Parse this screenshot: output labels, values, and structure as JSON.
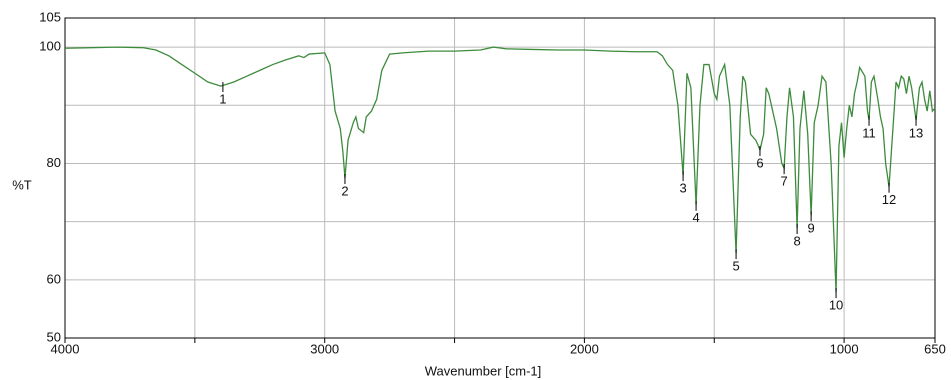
{
  "chart_data": {
    "type": "line",
    "x_label": "Wavenumber [cm-1]",
    "y_label": "%T",
    "xlim": [
      4000,
      650
    ],
    "ylim": [
      50,
      105
    ],
    "xticks": [
      4000,
      {
        "value": 3500,
        "label": null
      },
      3000,
      {
        "value": 2500,
        "label": null
      },
      2000,
      {
        "value": 1500,
        "label": null
      },
      1000,
      650
    ],
    "yticks": [
      50,
      60,
      {
        "value": 70,
        "label": null
      },
      80,
      {
        "value": 90,
        "label": null
      },
      100,
      105
    ],
    "grid": true,
    "series": [
      {
        "color": "#3d8b3d",
        "x": [
          4000,
          3900,
          3800,
          3700,
          3650,
          3600,
          3550,
          3500,
          3450,
          3400,
          3350,
          3300,
          3250,
          3200,
          3150,
          3100,
          3080,
          3060,
          3000,
          2980,
          2960,
          2940,
          2930,
          2922,
          2910,
          2890,
          2880,
          2870,
          2850,
          2840,
          2820,
          2800,
          2780,
          2750,
          2700,
          2600,
          2500,
          2400,
          2350,
          2300,
          2200,
          2100,
          2000,
          1900,
          1800,
          1720,
          1700,
          1680,
          1660,
          1640,
          1620,
          1605,
          1590,
          1570,
          1555,
          1540,
          1520,
          1500,
          1490,
          1480,
          1460,
          1440,
          1416,
          1400,
          1390,
          1380,
          1360,
          1340,
          1330,
          1324,
          1310,
          1300,
          1290,
          1260,
          1240,
          1231,
          1220,
          1210,
          1195,
          1181,
          1170,
          1155,
          1140,
          1127,
          1115,
          1100,
          1085,
          1070,
          1050,
          1031,
          1020,
          1010,
          1000,
          990,
          980,
          970,
          960,
          950,
          940,
          920,
          910,
          904,
          895,
          885,
          870,
          860,
          850,
          840,
          827,
          815,
          800,
          790,
          780,
          770,
          760,
          750,
          740,
          723,
          710,
          700,
          690,
          680,
          670,
          660,
          650
        ],
        "values": [
          99.8,
          99.9,
          100,
          99.9,
          99.5,
          98.5,
          97,
          95.5,
          94,
          93.3,
          94,
          95,
          96,
          97,
          97.8,
          98.5,
          98.2,
          98.8,
          99,
          97,
          89,
          86,
          82,
          77.5,
          84,
          87,
          88,
          86,
          85.3,
          88,
          89,
          91,
          96,
          98.8,
          99,
          99.3,
          99.3,
          99.5,
          100,
          99.7,
          99.6,
          99.5,
          99.5,
          99.3,
          99.2,
          99.2,
          98.5,
          97,
          96,
          90,
          78,
          95.5,
          93,
          72.9,
          90,
          97,
          97,
          92,
          91,
          95,
          97,
          90,
          64.6,
          88,
          95,
          94,
          85,
          84,
          83,
          82.3,
          85,
          93,
          92,
          86,
          80,
          79.2,
          88,
          93,
          88,
          68.9,
          86,
          92.5,
          85,
          71.1,
          87,
          90,
          95,
          94,
          80,
          57.9,
          83,
          87,
          81,
          86,
          90,
          88,
          92,
          94,
          96.5,
          95,
          89,
          87.5,
          94,
          95,
          91,
          88,
          86,
          80,
          76,
          84,
          94,
          93,
          95,
          94.5,
          92,
          95,
          93,
          87.5,
          93,
          94,
          91,
          89,
          92.5,
          89,
          89.5
        ]
      }
    ],
    "annotations": [
      {
        "label": "1",
        "x": 3392,
        "y": 93.3
      },
      {
        "label": "2",
        "x": 2922,
        "y": 77.5
      },
      {
        "label": "3",
        "x": 1620,
        "y": 78
      },
      {
        "label": "4",
        "x": 1570,
        "y": 72.9
      },
      {
        "label": "5",
        "x": 1416,
        "y": 64.6
      },
      {
        "label": "6",
        "x": 1324,
        "y": 82.3
      },
      {
        "label": "7",
        "x": 1231,
        "y": 79.2
      },
      {
        "label": "8",
        "x": 1181,
        "y": 68.9
      },
      {
        "label": "9",
        "x": 1127,
        "y": 71.1
      },
      {
        "label": "10",
        "x": 1031,
        "y": 57.9
      },
      {
        "label": "11",
        "x": 904,
        "y": 87.5
      },
      {
        "label": "12",
        "x": 827,
        "y": 76
      },
      {
        "label": "13",
        "x": 723,
        "y": 87.5
      }
    ]
  }
}
